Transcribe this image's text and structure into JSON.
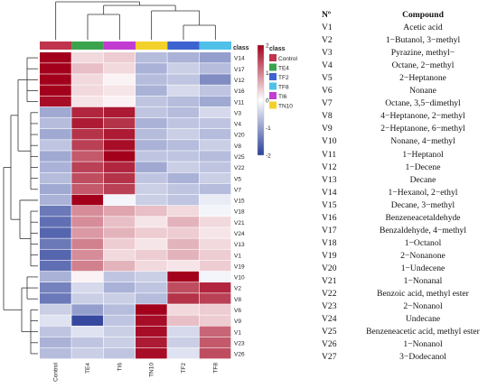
{
  "chart_data": {
    "type": "heatmap",
    "columns": [
      "Control",
      "TE4",
      "TI6",
      "TN10",
      "TF2",
      "TF8"
    ],
    "rows": [
      "V14",
      "V17",
      "V12",
      "V16",
      "V11",
      "V3",
      "V4",
      "V20",
      "V8",
      "V25",
      "V22",
      "V5",
      "V7",
      "V15",
      "V18",
      "V21",
      "V24",
      "V13",
      "V1",
      "V19",
      "V10",
      "V2",
      "V8",
      "V6",
      "V9",
      "V1",
      "V23",
      "V26"
    ],
    "values": [
      [
        2.0,
        0.3,
        0.4,
        -0.7,
        -0.8,
        -1.0
      ],
      [
        2.0,
        0.5,
        0.3,
        -0.8,
        -0.5,
        -0.7
      ],
      [
        2.0,
        0.3,
        0.1,
        -0.7,
        -0.6,
        -1.2
      ],
      [
        2.0,
        0.3,
        0.2,
        -0.8,
        -0.4,
        -0.6
      ],
      [
        1.9,
        0.2,
        0.1,
        -0.6,
        -0.7,
        -0.9
      ],
      [
        -0.9,
        1.7,
        1.8,
        -0.6,
        -0.7,
        -0.4
      ],
      [
        -0.7,
        1.8,
        1.6,
        -0.8,
        -0.6,
        -0.6
      ],
      [
        -0.9,
        1.6,
        1.8,
        -0.7,
        -0.5,
        -0.7
      ],
      [
        -0.6,
        1.5,
        1.9,
        -0.8,
        -0.7,
        -0.5
      ],
      [
        -0.9,
        1.3,
        2.0,
        -0.6,
        -0.6,
        -0.7
      ],
      [
        -0.8,
        1.5,
        1.7,
        -0.9,
        -0.5,
        -0.6
      ],
      [
        -0.7,
        1.4,
        1.6,
        -0.6,
        -0.8,
        -0.5
      ],
      [
        -0.9,
        1.3,
        1.5,
        -0.5,
        -0.6,
        -0.7
      ],
      [
        -0.8,
        2.0,
        -0.1,
        -0.5,
        -0.6,
        -0.2
      ],
      [
        -1.4,
        0.9,
        0.7,
        0.5,
        0.3,
        -0.1
      ],
      [
        -1.5,
        0.9,
        0.5,
        0.2,
        0.6,
        0.3
      ],
      [
        -1.6,
        0.8,
        0.6,
        0.4,
        0.4,
        0.2
      ],
      [
        -1.4,
        1.0,
        0.4,
        0.2,
        0.6,
        0.3
      ],
      [
        -1.6,
        0.9,
        0.3,
        0.4,
        0.6,
        0.4
      ],
      [
        -1.5,
        1.0,
        0.6,
        0.3,
        0.2,
        0.4
      ],
      [
        -0.8,
        0.1,
        -0.6,
        -0.5,
        2.0,
        -0.1
      ],
      [
        -1.3,
        -0.4,
        -0.8,
        -0.6,
        1.4,
        1.7
      ],
      [
        -1.4,
        -0.5,
        -0.5,
        -0.7,
        1.6,
        1.5
      ],
      [
        -0.5,
        -1.0,
        -0.7,
        2.0,
        0.3,
        0.4
      ],
      [
        -0.3,
        -1.9,
        -0.6,
        1.9,
        0.5,
        0.4
      ],
      [
        -0.6,
        -0.3,
        -0.5,
        1.9,
        -0.4,
        1.2
      ],
      [
        -0.8,
        -0.6,
        -0.5,
        1.8,
        -0.5,
        1.3
      ],
      [
        -0.7,
        -0.5,
        -0.6,
        1.9,
        -0.3,
        1.4
      ]
    ],
    "color_scale": {
      "min": -2,
      "max": 2,
      "ticks": [
        2,
        1,
        0,
        -1,
        -2
      ],
      "low": "#2b3f9a",
      "mid": "#ffffff",
      "high": "#a3001c"
    },
    "class_bar_label": "class",
    "classes": [
      {
        "name": "Control",
        "color": "#c0344d"
      },
      {
        "name": "TE4",
        "color": "#3aa44c"
      },
      {
        "name": "TF2",
        "color": "#3c63d0"
      },
      {
        "name": "TF8",
        "color": "#4fc0e8"
      },
      {
        "name": "TI6",
        "color": "#c23cd2"
      },
      {
        "name": "TN10",
        "color": "#f2d22a"
      }
    ],
    "column_classes": [
      "Control",
      "TE4",
      "TI6",
      "TN10",
      "TF2",
      "TF8"
    ]
  },
  "compound_table": {
    "headers": [
      "Nº",
      "Compound"
    ],
    "rows": [
      [
        "V1",
        "Acetic acid"
      ],
      [
        "V2",
        "1−Butanol, 3−methyl"
      ],
      [
        "V3",
        "Pyrazine, methyl−"
      ],
      [
        "V4",
        "Octane, 2−methyl"
      ],
      [
        "V5",
        "2−Heptanone"
      ],
      [
        "V6",
        "Nonane"
      ],
      [
        "V7",
        "Octane, 3,5−dimethyl"
      ],
      [
        "V8",
        "4−Heptanone, 2−methyl"
      ],
      [
        "V9",
        "2−Heptanone, 6−methyl"
      ],
      [
        "V10",
        "Nonane, 4−methyl"
      ],
      [
        "V11",
        "1−Heptanol"
      ],
      [
        "V12",
        "1−Decene"
      ],
      [
        "V13",
        "Decane"
      ],
      [
        "V14",
        "1−Hexanol, 2−ethyl"
      ],
      [
        "V15",
        "Decane, 3−methyl"
      ],
      [
        "V16",
        "Benzeneacetaldehyde"
      ],
      [
        "V17",
        "Benzaldehyde, 4−methyl"
      ],
      [
        "V18",
        "1−Octanol"
      ],
      [
        "V19",
        "2−Nonanone"
      ],
      [
        "V20",
        "1−Undecene"
      ],
      [
        "V21",
        "1−Nonanal"
      ],
      [
        "V22",
        "Benzoic acid, methyl ester"
      ],
      [
        "V23",
        "2−Nonanol"
      ],
      [
        "V24",
        "Undecane"
      ],
      [
        "V25",
        "Benzeneacetic acid, methyl ester"
      ],
      [
        "V26",
        "1−Nonanol"
      ],
      [
        "V27",
        "3−Dodecanol"
      ]
    ]
  }
}
